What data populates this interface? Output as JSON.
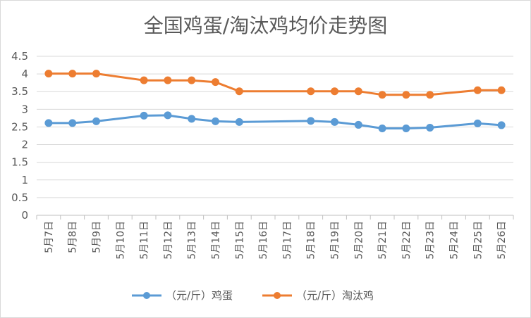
{
  "chart_data": {
    "type": "line",
    "title": "全国鸡蛋/淘汰鸡均价走势图",
    "categories": [
      "5月7日",
      "5月8日",
      "5月9日",
      "5月10日",
      "5月11日",
      "5月12日",
      "5月13日",
      "5月14日",
      "5月15日",
      "5月16日",
      "5月17日",
      "5月18日",
      "5月19日",
      "5月20日",
      "5月21日",
      "5月22日",
      "5月23日",
      "5月24日",
      "5月25日",
      "5月26日"
    ],
    "ylim": [
      0,
      4.5
    ],
    "yticks": [
      0,
      0.5,
      1,
      1.5,
      2,
      2.5,
      3,
      3.5,
      4,
      4.5
    ],
    "grid": true,
    "legend": "bottom",
    "series": [
      {
        "name": "（元/斤）鸡蛋",
        "color": "#5B9BD5",
        "values": [
          2.61,
          2.61,
          2.66,
          null,
          2.82,
          2.83,
          2.73,
          2.66,
          2.64,
          null,
          null,
          2.67,
          2.64,
          2.56,
          2.46,
          2.46,
          2.48,
          null,
          2.6,
          2.55
        ]
      },
      {
        "name": "（元/斤）淘汰鸡",
        "color": "#ED7D31",
        "values": [
          4.01,
          4.01,
          4.01,
          null,
          3.82,
          3.82,
          3.82,
          3.77,
          3.51,
          null,
          null,
          3.51,
          3.51,
          3.51,
          3.41,
          3.41,
          3.41,
          null,
          3.54,
          3.54
        ]
      }
    ]
  },
  "colors": {
    "text": "#595959",
    "grid": "#D9D9D9",
    "axis": "#BFBFBF",
    "border": "#D9D9D9",
    "background": "#FFFFFF"
  }
}
